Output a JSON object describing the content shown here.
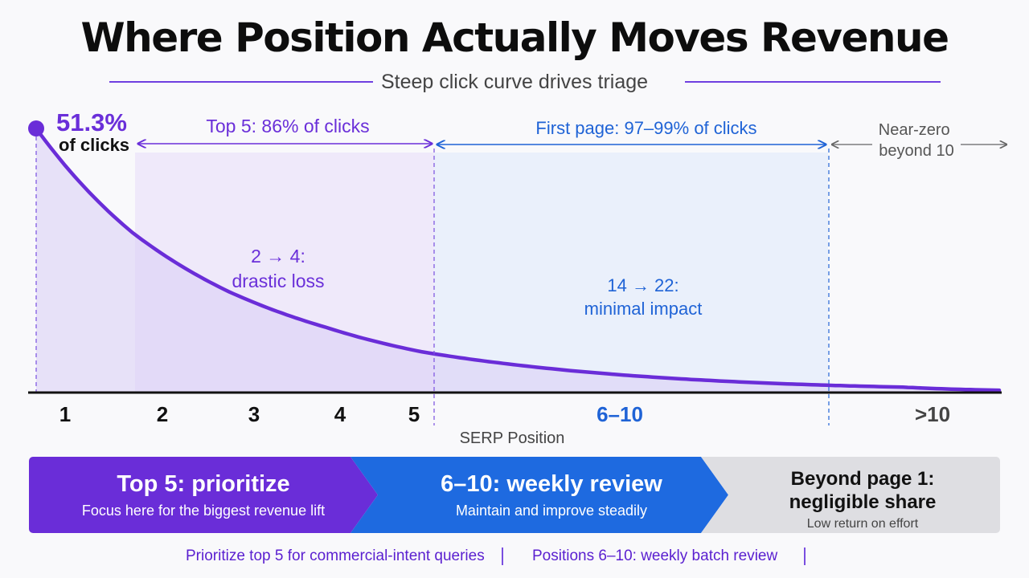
{
  "title": "Where Position Actually Moves Revenue",
  "subtitle": "Steep click curve drives triage",
  "colors": {
    "purple": "#6a2dd8",
    "blue": "#1e6ae0",
    "grey": "#dedee2",
    "purple_fill": "#ede7fa",
    "blue_fill": "#eaf0fb"
  },
  "chart_data": {
    "type": "area",
    "title": "Where Position Actually Moves Revenue",
    "subtitle": "Steep click curve drives triage",
    "xlabel": "SERP Position",
    "ylabel": "",
    "x_tick_labels": [
      "1",
      "2",
      "3",
      "4",
      "5",
      "6–10",
      ">10"
    ],
    "series": [
      {
        "values_note": "",
        "x": [
          1,
          2,
          3,
          4,
          5,
          6,
          7,
          8,
          9,
          10,
          11
        ],
        "y": [
          51.3,
          31.0,
          19.5,
          12.6,
          7.8,
          5.2,
          3.4,
          2.2,
          1.4,
          0.9,
          0.3
        ]
      }
    ],
    "peak_label": {
      "value": "51.3%",
      "text": "of clicks"
    },
    "bands": [
      {
        "label": "Top 5: 86% of clicks"
      },
      {
        "label": "First page: 97–99% of clicks"
      },
      {
        "label": "Near-zero beyond 10"
      }
    ],
    "annotations": [
      {
        "line1": "2 → 4:",
        "line2": "drastic loss"
      },
      {
        "line1": "14 → 22:",
        "line2": "minimal impact"
      }
    ],
    "grid": false
  },
  "chevrons": [
    {
      "head": "Top 5: prioritize",
      "sub": "Focus here for the biggest revenue lift"
    },
    {
      "head": "6–10: weekly review",
      "sub": "Maintain and improve steadily"
    },
    {
      "head1": "Beyond page 1:",
      "head2": "negligible share",
      "sub": "Low return on effort"
    }
  ],
  "footer": {
    "left": "Prioritize top 5 for commercial-intent queries",
    "right": "Positions 6–10: weekly batch review"
  }
}
